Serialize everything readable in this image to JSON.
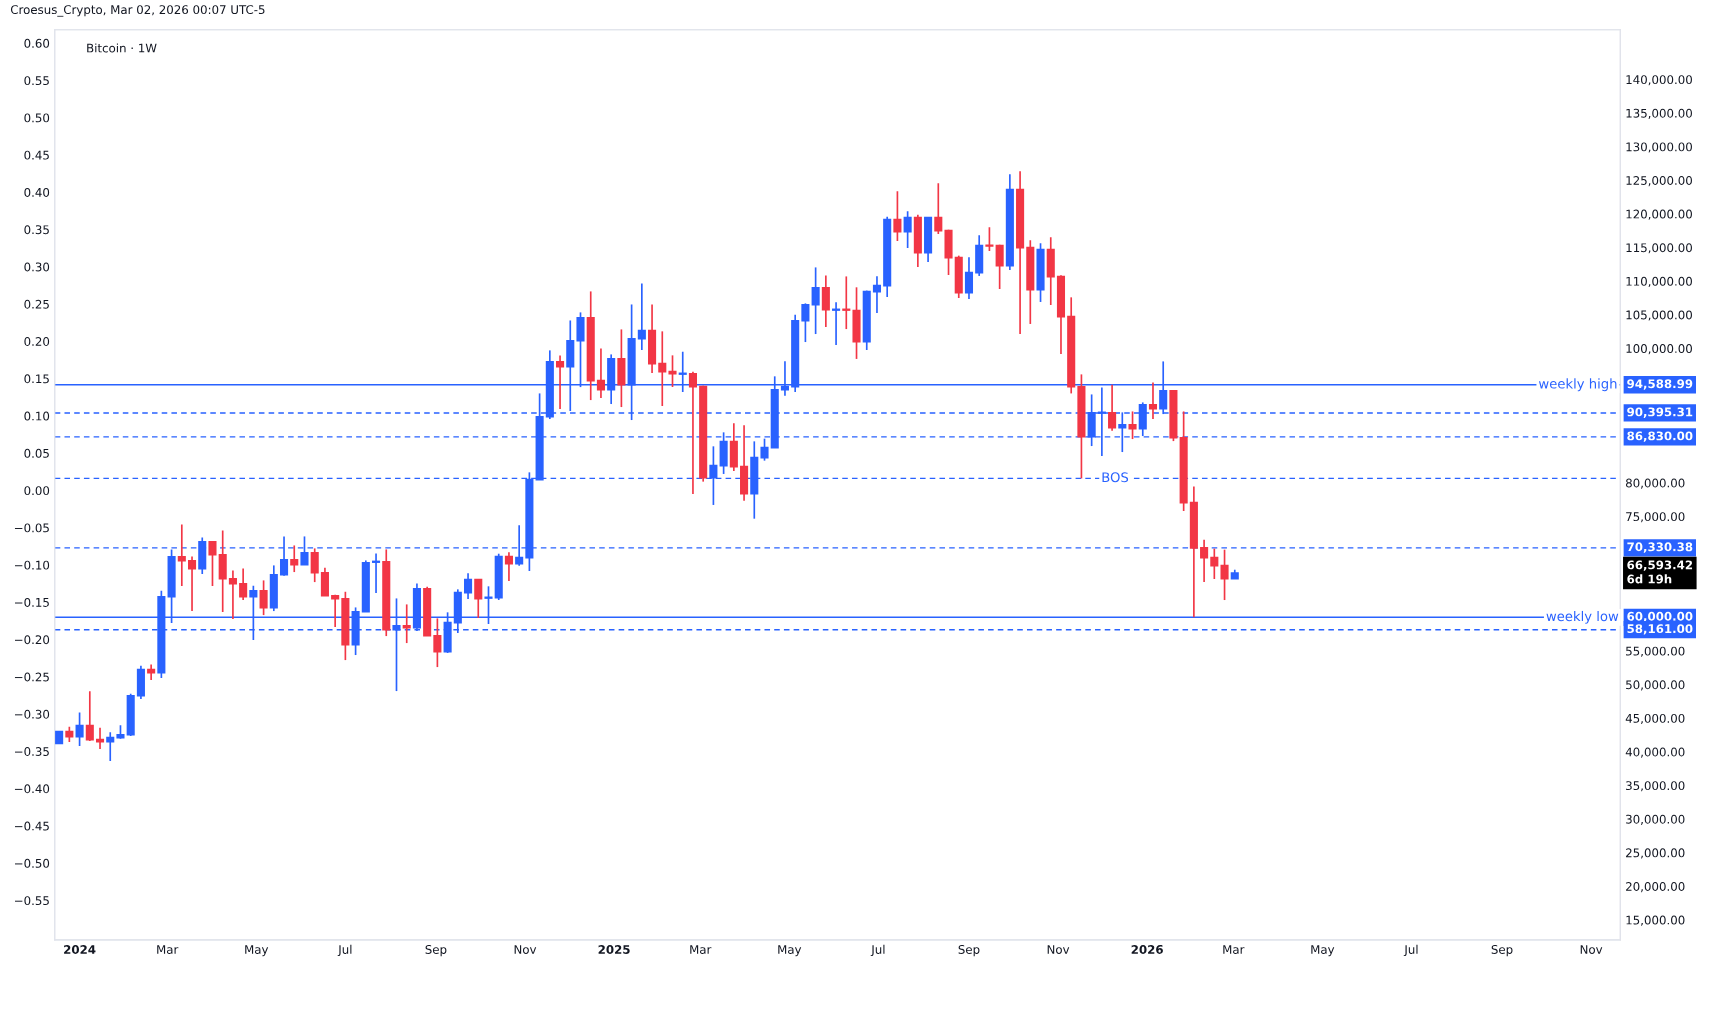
{
  "chart_data": {
    "type": "candlestick",
    "title": "Bitcoin · 1W",
    "subtitle": "Croesus_Crypto, Mar 02, 2026 00:07 UTC-5",
    "x": [
      "2023-12-18",
      "2023-12-25",
      "2024-01-01",
      "2024-01-08",
      "2024-01-15",
      "2024-01-22",
      "2024-01-29",
      "2024-02-05",
      "2024-02-12",
      "2024-02-19",
      "2024-02-26",
      "2024-03-04",
      "2024-03-11",
      "2024-03-18",
      "2024-03-25",
      "2024-04-01",
      "2024-04-08",
      "2024-04-15",
      "2024-04-22",
      "2024-04-29",
      "2024-05-06",
      "2024-05-13",
      "2024-05-20",
      "2024-05-27",
      "2024-06-03",
      "2024-06-10",
      "2024-06-17",
      "2024-06-24",
      "2024-07-01",
      "2024-07-08",
      "2024-07-15",
      "2024-07-22",
      "2024-07-29",
      "2024-08-05",
      "2024-08-12",
      "2024-08-19",
      "2024-08-26",
      "2024-09-02",
      "2024-09-09",
      "2024-09-16",
      "2024-09-23",
      "2024-09-30",
      "2024-10-07",
      "2024-10-14",
      "2024-10-21",
      "2024-10-28",
      "2024-11-04",
      "2024-11-11",
      "2024-11-18",
      "2024-11-25",
      "2024-12-02",
      "2024-12-09",
      "2024-12-16",
      "2024-12-23",
      "2024-12-30",
      "2025-01-06",
      "2025-01-13",
      "2025-01-20",
      "2025-01-27",
      "2025-02-03",
      "2025-02-10",
      "2025-02-17",
      "2025-02-24",
      "2025-03-03",
      "2025-03-10",
      "2025-03-17",
      "2025-03-24",
      "2025-03-31",
      "2025-04-07",
      "2025-04-14",
      "2025-04-21",
      "2025-04-28",
      "2025-05-05",
      "2025-05-12",
      "2025-05-19",
      "2025-05-26",
      "2025-06-02",
      "2025-06-09",
      "2025-06-16",
      "2025-06-23",
      "2025-06-30",
      "2025-07-07",
      "2025-07-14",
      "2025-07-21",
      "2025-07-28",
      "2025-08-04",
      "2025-08-11",
      "2025-08-18",
      "2025-08-25",
      "2025-09-01",
      "2025-09-08",
      "2025-09-15",
      "2025-09-22",
      "2025-09-29",
      "2025-10-06",
      "2025-10-13",
      "2025-10-20",
      "2025-10-27",
      "2025-11-03",
      "2025-11-10",
      "2025-11-17",
      "2025-11-24",
      "2025-12-01",
      "2025-12-08",
      "2025-12-15",
      "2025-12-22",
      "2025-12-29",
      "2026-01-05",
      "2026-01-12",
      "2026-01-19",
      "2026-01-26",
      "2026-02-02",
      "2026-02-09",
      "2026-02-16",
      "2026-02-23",
      "2026-03-02"
    ],
    "ohlc": [
      [
        41250,
        42990,
        41250,
        42990
      ],
      [
        42990,
        43730,
        41450,
        42250
      ],
      [
        42250,
        45860,
        40860,
        43880
      ],
      [
        43880,
        48990,
        41600,
        41800
      ],
      [
        41800,
        43580,
        40410,
        41500
      ],
      [
        41500,
        42890,
        38630,
        42100
      ],
      [
        42100,
        43930,
        41950,
        42540
      ],
      [
        42540,
        48640,
        42340,
        48340
      ],
      [
        48340,
        52800,
        47850,
        52210
      ],
      [
        52210,
        53000,
        50670,
        51760
      ],
      [
        51760,
        63950,
        50970,
        63060
      ],
      [
        63060,
        70100,
        59150,
        69010
      ],
      [
        69010,
        73810,
        64650,
        68410
      ],
      [
        68410,
        69060,
        60930,
        67220
      ],
      [
        67220,
        71880,
        66430,
        71240
      ],
      [
        71240,
        71240,
        64650,
        69300
      ],
      [
        69300,
        72920,
        60780,
        65740
      ],
      [
        65740,
        66980,
        59740,
        64990
      ],
      [
        64990,
        67270,
        62560,
        63060
      ],
      [
        63060,
        64700,
        56620,
        63950
      ],
      [
        63950,
        65490,
        60330,
        61420
      ],
      [
        61420,
        67720,
        60930,
        66330
      ],
      [
        66330,
        72030,
        66180,
        68560
      ],
      [
        68560,
        70690,
        66730,
        67820
      ],
      [
        67820,
        72030,
        67820,
        69600
      ],
      [
        69600,
        70250,
        65240,
        66630
      ],
      [
        66630,
        67370,
        63210,
        63210
      ],
      [
        63210,
        63360,
        58550,
        62760
      ],
      [
        62760,
        63800,
        53640,
        55920
      ],
      [
        55920,
        61470,
        54390,
        60830
      ],
      [
        60830,
        68460,
        60830,
        68120
      ],
      [
        68210,
        69500,
        63610,
        68310
      ],
      [
        68260,
        70100,
        57210,
        58150
      ],
      [
        58150,
        62810,
        49030,
        58750
      ],
      [
        58750,
        61920,
        56170,
        58450
      ],
      [
        58450,
        65040,
        57960,
        64250
      ],
      [
        64250,
        64550,
        57260,
        57260
      ],
      [
        57260,
        59840,
        52600,
        54880
      ],
      [
        54890,
        60740,
        54700,
        59210
      ],
      [
        59210,
        64160,
        57670,
        63670
      ],
      [
        63670,
        66540,
        62720,
        65600
      ],
      [
        65600,
        65600,
        59900,
        62770
      ],
      [
        62870,
        64610,
        59010,
        62970
      ],
      [
        62920,
        69460,
        62580,
        69020
      ],
      [
        69020,
        69660,
        65400,
        67980
      ],
      [
        67980,
        73680,
        67680,
        68870
      ],
      [
        68870,
        81560,
        66890,
        80470
      ],
      [
        80470,
        93300,
        80470,
        89830
      ],
      [
        89830,
        99700,
        89490,
        98010
      ],
      [
        98010,
        98950,
        90970,
        97270
      ],
      [
        97270,
        104150,
        90680,
        101130
      ],
      [
        101130,
        105350,
        94240,
        104550
      ],
      [
        104550,
        108470,
        92310,
        95190
      ],
      [
        95190,
        99990,
        92610,
        93850
      ],
      [
        93850,
        99100,
        91720,
        98460
      ],
      [
        98460,
        102820,
        91270,
        94590
      ],
      [
        94590,
        106530,
        89340,
        101430
      ],
      [
        101440,
        109660,
        99750,
        102630
      ],
      [
        102630,
        106540,
        96330,
        97720
      ],
      [
        97720,
        102530,
        91430,
        96530
      ],
      [
        96530,
        98960,
        94250,
        96230
      ],
      [
        96180,
        99500,
        93510,
        96280
      ],
      [
        96230,
        96530,
        78340,
        94300
      ],
      [
        94300,
        94450,
        80180,
        80770
      ],
      [
        80770,
        85430,
        76710,
        82550
      ],
      [
        82550,
        87510,
        81320,
        86120
      ],
      [
        86120,
        88850,
        81760,
        82410
      ],
      [
        82410,
        88550,
        77350,
        78390
      ],
      [
        78390,
        86170,
        74670,
        83740
      ],
      [
        83740,
        86570,
        83300,
        85230
      ],
      [
        85230,
        95840,
        85230,
        93850
      ],
      [
        93850,
        98070,
        92960,
        94300
      ],
      [
        94300,
        105000,
        93510,
        104110
      ],
      [
        104110,
        106690,
        100940,
        106490
      ],
      [
        106490,
        112040,
        102130,
        109020
      ],
      [
        109020,
        110850,
        103170,
        105750
      ],
      [
        105700,
        106840,
        100490,
        105800
      ],
      [
        105800,
        110700,
        102870,
        105700
      ],
      [
        105610,
        109080,
        98430,
        101000
      ],
      [
        101000,
        108590,
        99760,
        108440
      ],
      [
        108440,
        110720,
        105260,
        109330
      ],
      [
        109330,
        119590,
        107640,
        119140
      ],
      [
        119140,
        123350,
        115970,
        117360
      ],
      [
        117360,
        120380,
        114930,
        119440
      ],
      [
        119440,
        119880,
        112100,
        114240
      ],
      [
        114240,
        119440,
        112850,
        119440
      ],
      [
        119440,
        124540,
        117010,
        117510
      ],
      [
        117510,
        117650,
        110910,
        113490
      ],
      [
        113490,
        113790,
        107490,
        108290
      ],
      [
        108290,
        113540,
        107350,
        111260
      ],
      [
        111260,
        116810,
        110770,
        115280
      ],
      [
        115330,
        118000,
        114480,
        115230
      ],
      [
        115280,
        115420,
        108830,
        112300
      ],
      [
        112300,
        125880,
        111660,
        123600
      ],
      [
        123600,
        126330,
        102140,
        114980
      ],
      [
        114980,
        116070,
        103630,
        108730
      ],
      [
        108730,
        115620,
        106900,
        114680
      ],
      [
        114680,
        116510,
        106450,
        110670
      ],
      [
        110670,
        110860,
        99170,
        104720
      ],
      [
        104720,
        107590,
        93300,
        94290
      ],
      [
        94290,
        96130,
        80660,
        86860
      ],
      [
        86860,
        93150,
        85470,
        90430
      ],
      [
        90380,
        94190,
        83980,
        90480
      ],
      [
        90430,
        94590,
        87750,
        88200
      ],
      [
        88200,
        90480,
        84580,
        88640
      ],
      [
        88640,
        90620,
        86510,
        88050
      ],
      [
        88050,
        91960,
        86960,
        91620
      ],
      [
        91620,
        94940,
        89480,
        91020
      ],
      [
        91020,
        98060,
        90230,
        93700
      ],
      [
        93700,
        93700,
        86210,
        86710
      ],
      [
        86710,
        90620,
        75810,
        77050
      ],
      [
        77050,
        79470,
        60000,
        70330
      ],
      [
        70330,
        71540,
        65250,
        68870
      ],
      [
        68870,
        70210,
        65700,
        67680
      ],
      [
        67680,
        70060,
        62570,
        65750
      ],
      [
        65750,
        67080,
        65750,
        66593.42
      ]
    ],
    "colors": [
      "#2962ff",
      "#f23645",
      "#2962ff",
      "#f23645",
      "#f23645",
      "#2962ff",
      "#2962ff",
      "#2962ff",
      "#2962ff",
      "#f23645",
      "#2962ff",
      "#2962ff",
      "#f23645",
      "#f23645",
      "#2962ff",
      "#f23645",
      "#f23645",
      "#f23645",
      "#f23645",
      "#2962ff",
      "#f23645",
      "#2962ff",
      "#2962ff",
      "#f23645",
      "#2962ff",
      "#f23645",
      "#f23645",
      "#f23645",
      "#f23645",
      "#2962ff",
      "#2962ff",
      "#2962ff",
      "#f23645",
      "#2962ff",
      "#f23645",
      "#2962ff",
      "#f23645",
      "#f23645",
      "#2962ff",
      "#2962ff",
      "#2962ff",
      "#f23645",
      "#2962ff",
      "#2962ff",
      "#f23645",
      "#2962ff",
      "#2962ff",
      "#2962ff",
      "#2962ff",
      "#f23645",
      "#2962ff",
      "#2962ff",
      "#f23645",
      "#f23645",
      "#2962ff",
      "#f23645",
      "#2962ff",
      "#2962ff",
      "#f23645",
      "#f23645",
      "#f23645",
      "#2962ff",
      "#f23645",
      "#f23645",
      "#2962ff",
      "#2962ff",
      "#f23645",
      "#f23645",
      "#2962ff",
      "#2962ff",
      "#2962ff",
      "#2962ff",
      "#2962ff",
      "#2962ff",
      "#2962ff",
      "#f23645",
      "#2962ff",
      "#f23645",
      "#f23645",
      "#2962ff",
      "#2962ff",
      "#2962ff",
      "#f23645",
      "#2962ff",
      "#f23645",
      "#2962ff",
      "#f23645",
      "#f23645",
      "#f23645",
      "#2962ff",
      "#2962ff",
      "#f23645",
      "#f23645",
      "#2962ff",
      "#f23645",
      "#f23645",
      "#2962ff",
      "#f23645",
      "#f23645",
      "#f23645",
      "#f23645",
      "#2962ff",
      "#2962ff",
      "#f23645",
      "#2962ff",
      "#f23645",
      "#2962ff",
      "#f23645",
      "#2962ff",
      "#f23645",
      "#f23645",
      "#f23645",
      "#f23645",
      "#f23645",
      "#f23645",
      "#2962ff"
    ],
    "xlim": [
      "2023-12-15",
      "2026-11-21"
    ],
    "xticks": [
      {
        "value": "2024-01-01",
        "label": "2024"
      },
      {
        "value": "2024-03-01",
        "label": "Mar"
      },
      {
        "value": "2024-05-01",
        "label": "May"
      },
      {
        "value": "2024-07-01",
        "label": "Jul"
      },
      {
        "value": "2024-09-01",
        "label": "Sep"
      },
      {
        "value": "2024-11-01",
        "label": "Nov"
      },
      {
        "value": "2025-01-01",
        "label": "2025"
      },
      {
        "value": "2025-03-01",
        "label": "Mar"
      },
      {
        "value": "2025-05-01",
        "label": "May"
      },
      {
        "value": "2025-07-01",
        "label": "Jul"
      },
      {
        "value": "2025-09-01",
        "label": "Sep"
      },
      {
        "value": "2025-11-01",
        "label": "Nov"
      },
      {
        "value": "2026-01-01",
        "label": "2026"
      },
      {
        "value": "2026-03-01",
        "label": "Mar"
      },
      {
        "value": "2026-05-01",
        "label": "May"
      },
      {
        "value": "2026-07-01",
        "label": "Jul"
      },
      {
        "value": "2026-09-01",
        "label": "Sep"
      },
      {
        "value": "2026-11-01",
        "label": "Nov"
      }
    ],
    "ylim": [
      12020,
      147390
    ],
    "yticks": [
      {
        "value": 140000,
        "label": "140,000.00"
      },
      {
        "value": 135000,
        "label": "135,000.00"
      },
      {
        "value": 130000,
        "label": "130,000.00"
      },
      {
        "value": 125000,
        "label": "125,000.00"
      },
      {
        "value": 120000,
        "label": "120,000.00"
      },
      {
        "value": 115000,
        "label": "115,000.00"
      },
      {
        "value": 110000,
        "label": "110,000.00"
      },
      {
        "value": 105000,
        "label": "105,000.00"
      },
      {
        "value": 100000,
        "label": "100,000.00"
      },
      {
        "value": 80000,
        "label": "80,000.00"
      },
      {
        "value": 75000,
        "label": "75,000.00"
      },
      {
        "value": 55000,
        "label": "55,000.00"
      },
      {
        "value": 50000,
        "label": "50,000.00"
      },
      {
        "value": 45000,
        "label": "45,000.00"
      },
      {
        "value": 40000,
        "label": "40,000.00"
      },
      {
        "value": 35000,
        "label": "35,000.00"
      },
      {
        "value": 30000,
        "label": "30,000.00"
      },
      {
        "value": 25000,
        "label": "25,000.00"
      },
      {
        "value": 20000,
        "label": "20,000.00"
      },
      {
        "value": 15000,
        "label": "15,000.00"
      }
    ],
    "y2lim": [
      -0.603,
      0.618
    ],
    "y2ticks": [
      {
        "value": 0.6,
        "label": "0.60"
      },
      0.55,
      {
        "value": 0.5,
        "label": "0.50"
      },
      0.45,
      {
        "value": 0.4,
        "label": "0.40"
      },
      0.35,
      {
        "value": 0.3,
        "label": "0.30"
      },
      0.25,
      {
        "value": 0.2,
        "label": "0.20"
      },
      0.15,
      {
        "value": 0.1,
        "label": "0.10"
      },
      0.05,
      {
        "value": 0,
        "label": "0.00"
      },
      {
        "value": -0.05,
        "label": "−0.05"
      },
      {
        "value": -0.1,
        "label": "−0.10"
      },
      {
        "value": -0.15,
        "label": "−0.15"
      },
      {
        "value": -0.2,
        "label": "−0.20"
      },
      {
        "value": -0.25,
        "label": "−0.25"
      },
      {
        "value": -0.3,
        "label": "−0.30"
      },
      {
        "value": -0.35,
        "label": "−0.35"
      },
      {
        "value": -0.4,
        "label": "−0.40"
      },
      {
        "value": -0.45,
        "label": "−0.45"
      },
      {
        "value": -0.5,
        "label": "−0.50"
      },
      {
        "value": -0.55,
        "label": "−0.55"
      }
    ],
    "ref_lines": [
      {
        "axis": "y",
        "value": 94588.99,
        "label": "94,588.99",
        "color": "#2962ff",
        "line_style": "solid"
      },
      {
        "axis": "y",
        "value": 90395.31,
        "label": "90,395.31",
        "color": "#2962ff",
        "line_style": "dashed"
      },
      {
        "axis": "y",
        "value": 86830,
        "label": "86,830.00",
        "color": "#2962ff",
        "line_style": "dashed"
      },
      {
        "axis": "y",
        "value": 80660,
        "label": null,
        "color": "#2962ff",
        "line_style": "dashed"
      },
      {
        "axis": "y",
        "value": 70330.38,
        "label": "70,330.38",
        "color": "#2962ff",
        "line_style": "dashed"
      },
      {
        "axis": "y",
        "value": 60000,
        "label": "60,000.00",
        "color": "#2962ff",
        "line_style": "solid"
      },
      {
        "axis": "y",
        "value": 58161,
        "label": "58,161.00",
        "color": "#2962ff",
        "line_style": "dashed"
      }
    ],
    "annotations": [
      {
        "text": "weekly high",
        "x": "2026-10-23",
        "y": 94588.99
      },
      {
        "text": "weekly low",
        "x": "2026-10-26",
        "y": 60000
      },
      {
        "text": "BOS",
        "x": "2025-12-10",
        "y": 80660
      },
      "66,593.42\n6d 19h"
    ],
    "grid": false
  }
}
